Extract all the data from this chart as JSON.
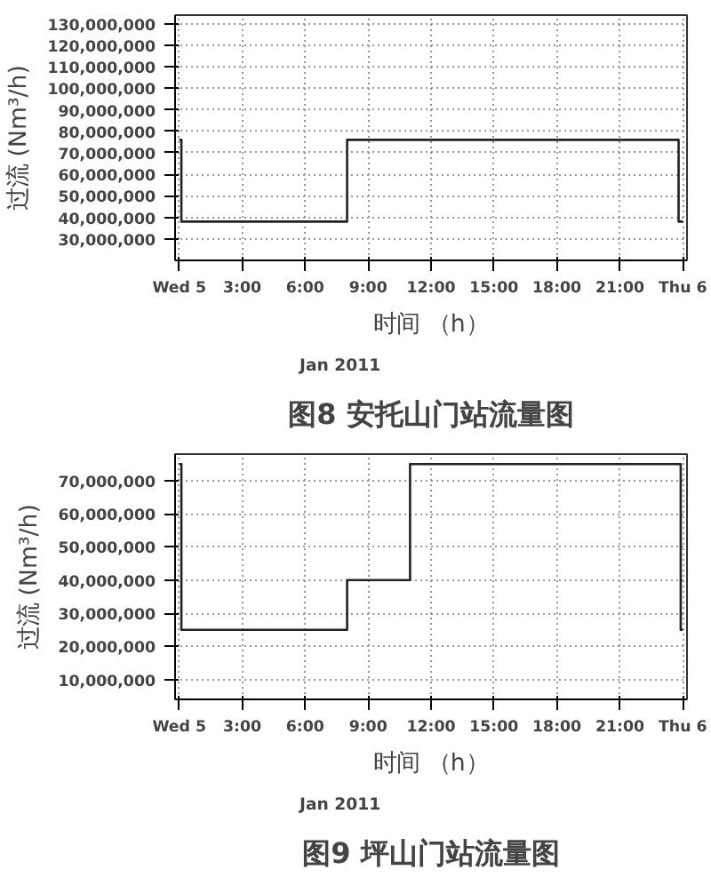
{
  "chart_data": [
    {
      "type": "step",
      "title": "图8 安托山门站流量图",
      "xlabel": "时间 （h）",
      "ylabel": "过流 (Nm³/h)",
      "annotations": [
        "Jan 2011"
      ],
      "x": [
        0,
        0.1,
        8,
        23.8,
        24
      ],
      "series": [
        {
          "color": "#222222",
          "values": [
            76000000,
            38000000,
            76000000,
            38000000,
            38000000
          ]
        }
      ],
      "xlim": [
        -0.2,
        24.2
      ],
      "ylim": [
        20000000,
        134000000
      ],
      "xticks": [
        {
          "value": 0,
          "label": "Wed 5"
        },
        {
          "value": 3,
          "label": "3:00"
        },
        {
          "value": 6,
          "label": "6:00"
        },
        {
          "value": 9,
          "label": "9:00"
        },
        {
          "value": 12,
          "label": "12:00"
        },
        {
          "value": 15,
          "label": "15:00"
        },
        {
          "value": 18,
          "label": "18:00"
        },
        {
          "value": 21,
          "label": "21:00"
        },
        {
          "value": 24,
          "label": "Thu 6"
        }
      ],
      "yticks": [
        {
          "value": 30000000,
          "label": "30,000,000"
        },
        {
          "value": 40000000,
          "label": "40,000,000"
        },
        {
          "value": 50000000,
          "label": "50,000,000"
        },
        {
          "value": 60000000,
          "label": "60,000,000"
        },
        {
          "value": 70000000,
          "label": "70,000,000"
        },
        {
          "value": 80000000,
          "label": "80,000,000"
        },
        {
          "value": 90000000,
          "label": "90,000,000"
        },
        {
          "value": 100000000,
          "label": "100,000,000"
        },
        {
          "value": 110000000,
          "label": "110,000,000"
        },
        {
          "value": 120000000,
          "label": "120,000,000"
        },
        {
          "value": 130000000,
          "label": "130,000,000"
        }
      ],
      "grid": true,
      "line_style": "solid"
    },
    {
      "type": "step",
      "title": "图9 坪山门站流量图",
      "xlabel": "时间 （h）",
      "ylabel": "过流 (Nm³/h)",
      "annotations": [
        "Jan 2011"
      ],
      "x": [
        0,
        0.1,
        8,
        11,
        23.9,
        24
      ],
      "series": [
        {
          "color": "#222222",
          "values": [
            75000000,
            25000000,
            40000000,
            75000000,
            25000000,
            25000000
          ]
        }
      ],
      "xlim": [
        -0.2,
        24.2
      ],
      "ylim": [
        4000000,
        78000000
      ],
      "xticks": [
        {
          "value": 0,
          "label": "Wed 5"
        },
        {
          "value": 3,
          "label": "3:00"
        },
        {
          "value": 6,
          "label": "6:00"
        },
        {
          "value": 9,
          "label": "9:00"
        },
        {
          "value": 12,
          "label": "12:00"
        },
        {
          "value": 15,
          "label": "15:00"
        },
        {
          "value": 18,
          "label": "18:00"
        },
        {
          "value": 21,
          "label": "21:00"
        },
        {
          "value": 24,
          "label": "Thu 6"
        }
      ],
      "yticks": [
        {
          "value": 10000000,
          "label": "10,000,000"
        },
        {
          "value": 20000000,
          "label": "20,000,000"
        },
        {
          "value": 30000000,
          "label": "30,000,000"
        },
        {
          "value": 40000000,
          "label": "40,000,000"
        },
        {
          "value": 50000000,
          "label": "50,000,000"
        },
        {
          "value": 60000000,
          "label": "60,000,000"
        },
        {
          "value": 70000000,
          "label": "70,000,000"
        }
      ],
      "grid": true,
      "line_style": "solid"
    }
  ]
}
